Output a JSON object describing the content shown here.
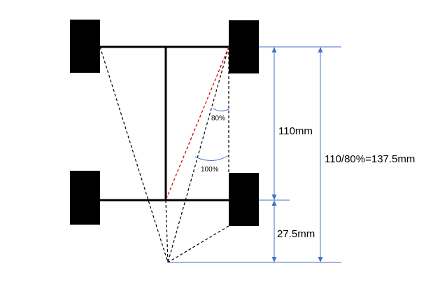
{
  "labels": {
    "angle_small": "80%",
    "angle_large": "100%",
    "dim_wheelbase": "110mm",
    "dim_extension": "27.5mm",
    "dim_total": "110/80%=137.5mm"
  },
  "colors": {
    "chassis": "#000000",
    "dimension": "#4472c4",
    "ackermann_line": "#e00000",
    "background": "#ffffff"
  }
}
